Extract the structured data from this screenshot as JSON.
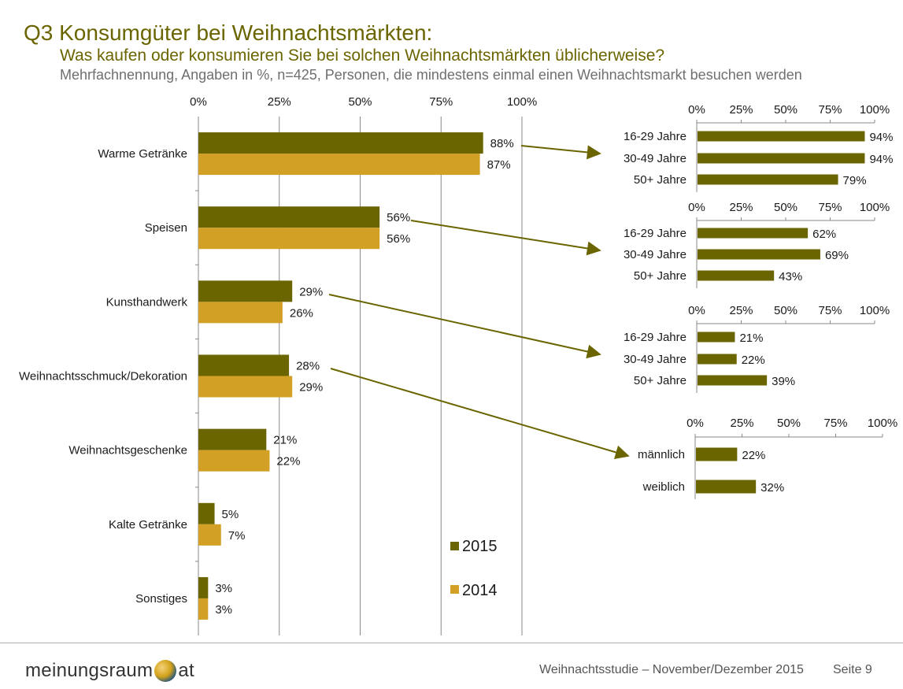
{
  "header": {
    "title": "Q3 Konsumgüter bei Weihnachtsmärkten:",
    "subtitle": "Was kaufen oder konsumieren Sie bei solchen Weihnachtsmärkten üblicherweise?",
    "note": "Mehrfachnennung, Angaben in %, n=425, Personen, die mindestens einmal einen Weihnachtsmarkt besuchen werden"
  },
  "footer": {
    "logo_left": "meinungsraum",
    "logo_right": "at",
    "study": "Weihnachtsstudie – November/Dezember 2015",
    "page": "Seite 9"
  },
  "colors": {
    "s2015": "#6b6500",
    "s2014": "#d1a024",
    "axis": "#888888",
    "arrow": "#6b6500"
  },
  "chart_data": [
    {
      "type": "bar",
      "orientation": "horizontal",
      "categories": [
        "Warme Getränke",
        "Speisen",
        "Kunsthandwerk",
        "Weihnachtsschmuck/Dekoration",
        "Weihnachtsgeschenke",
        "Kalte Getränke",
        "Sonstiges"
      ],
      "series": [
        {
          "name": "2015",
          "values": [
            88,
            56,
            29,
            28,
            21,
            5,
            3
          ]
        },
        {
          "name": "2014",
          "values": [
            87,
            56,
            26,
            29,
            22,
            7,
            3
          ]
        }
      ],
      "xlim": [
        0,
        100
      ],
      "ticks": [
        "0%",
        "25%",
        "50%",
        "75%",
        "100%"
      ],
      "grid": true,
      "legend": "bottom-right"
    },
    {
      "type": "bar",
      "orientation": "horizontal",
      "categories": [
        "16-29 Jahre",
        "30-49 Jahre",
        "50+ Jahre"
      ],
      "values": [
        94,
        94,
        79
      ],
      "xlim": [
        0,
        100
      ],
      "ticks": [
        "0%",
        "25%",
        "50%",
        "75%",
        "100%"
      ]
    },
    {
      "type": "bar",
      "orientation": "horizontal",
      "categories": [
        "16-29 Jahre",
        "30-49 Jahre",
        "50+ Jahre"
      ],
      "values": [
        62,
        69,
        43
      ],
      "xlim": [
        0,
        100
      ],
      "ticks": [
        "0%",
        "25%",
        "50%",
        "75%",
        "100%"
      ]
    },
    {
      "type": "bar",
      "orientation": "horizontal",
      "categories": [
        "16-29 Jahre",
        "30-49 Jahre",
        "50+ Jahre"
      ],
      "values": [
        21,
        22,
        39
      ],
      "xlim": [
        0,
        100
      ],
      "ticks": [
        "0%",
        "25%",
        "50%",
        "75%",
        "100%"
      ]
    },
    {
      "type": "bar",
      "orientation": "horizontal",
      "categories": [
        "männlich",
        "weiblich"
      ],
      "values": [
        22,
        32
      ],
      "xlim": [
        0,
        100
      ],
      "ticks": [
        "0%",
        "25%",
        "50%",
        "75%",
        "100%"
      ]
    }
  ]
}
